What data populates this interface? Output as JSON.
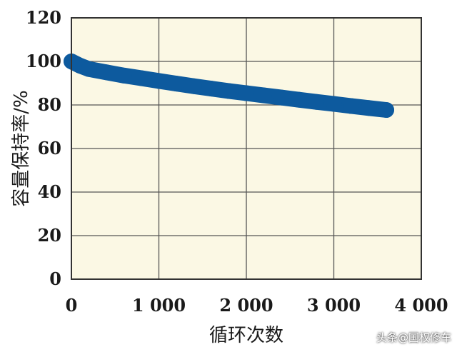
{
  "chart_data": {
    "type": "scatter",
    "xlabel": "循环次数",
    "ylabel": "容量保持率/%",
    "xlim": [
      0,
      4000
    ],
    "ylim": [
      0,
      120
    ],
    "x_ticks": [
      "0",
      "1 000",
      "2 000",
      "3 000",
      "4 000"
    ],
    "y_ticks": [
      "0",
      "20",
      "40",
      "60",
      "80",
      "100",
      "120"
    ],
    "grid": true,
    "colors": {
      "series": "#0d5a9e",
      "plot_bg": "#fbf8e4"
    },
    "series": [
      {
        "x": [
          0,
          100,
          200,
          400,
          600,
          800,
          1000,
          1200,
          1400,
          1600,
          1800,
          2000,
          2200,
          2400,
          2600,
          2800,
          3000,
          3200,
          3400,
          3600
        ],
        "y": [
          100,
          98,
          96.5,
          95,
          93.5,
          92.3,
          91,
          89.8,
          88.6,
          87.5,
          86.4,
          85.4,
          84.4,
          83.4,
          82.4,
          81.4,
          80.5,
          79.5,
          78.6,
          77.7
        ]
      }
    ]
  },
  "watermark": "头条@国权修车"
}
